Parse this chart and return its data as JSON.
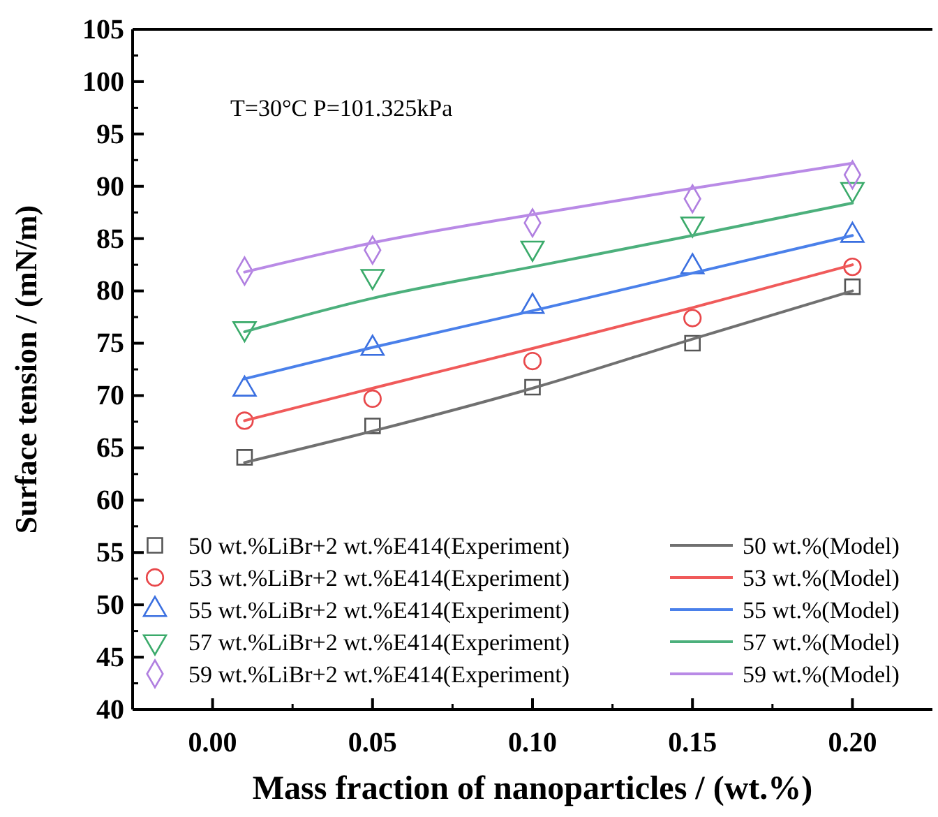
{
  "chart_data": {
    "type": "scatter",
    "xlabel": "Mass fraction of nanoparticles / (wt.%)",
    "ylabel": "Surface tension / (mN/m)",
    "annotations": [
      "T=30°C P=101.325kPa"
    ],
    "xlim": [
      -0.025,
      0.225
    ],
    "xticks": [
      {
        "value": 0,
        "label": "0.00"
      },
      {
        "value": 0.05,
        "label": "0.05"
      },
      {
        "value": 0.1,
        "label": "0.10"
      },
      {
        "value": 0.15,
        "label": "0.15"
      },
      {
        "value": 0.2,
        "label": "0.20"
      }
    ],
    "ylim": [
      40,
      105
    ],
    "yticks": [
      40,
      45,
      50,
      55,
      60,
      65,
      70,
      75,
      80,
      85,
      90,
      95,
      100,
      105
    ],
    "grid": false,
    "legend": "bottom",
    "x": [
      0.01,
      0.05,
      0.1,
      0.15,
      0.2
    ],
    "series": [
      {
        "name": "50 wt.%LiBr+2 wt.%E414(Experiment)",
        "type": "scatter",
        "marker": "square",
        "color": "#555555",
        "values": [
          64.1,
          67.1,
          70.8,
          75.0,
          80.4
        ]
      },
      {
        "name": "53 wt.%LiBr+2 wt.%E414(Experiment)",
        "type": "scatter",
        "marker": "circle",
        "color": "#e8474a",
        "values": [
          67.6,
          69.7,
          73.3,
          77.4,
          82.3
        ]
      },
      {
        "name": "55 wt.%LiBr+2 wt.%E414(Experiment)",
        "type": "scatter",
        "marker": "triangle",
        "color": "#3a6fe0",
        "values": [
          70.6,
          74.5,
          78.5,
          82.3,
          85.3
        ]
      },
      {
        "name": "57 wt.%LiBr+2 wt.%E414(Experiment)",
        "type": "scatter",
        "marker": "triangle-down",
        "color": "#3aaa6a",
        "values": [
          76.4,
          81.4,
          84.1,
          86.4,
          89.7
        ]
      },
      {
        "name": "59 wt.%LiBr+2 wt.%E414(Experiment)",
        "type": "scatter",
        "marker": "diamond",
        "color": "#b07fe0",
        "values": [
          81.9,
          83.9,
          86.5,
          88.8,
          91.1
        ]
      },
      {
        "name": "50 wt.%(Model)",
        "type": "line",
        "marker": "none",
        "line_style": "solid",
        "color": "#707070",
        "values": [
          63.6,
          66.6,
          70.7,
          75.4,
          80.0
        ]
      },
      {
        "name": "53 wt.%(Model)",
        "type": "line",
        "marker": "none",
        "line_style": "solid",
        "color": "#f05a5a",
        "values": [
          67.6,
          70.7,
          74.5,
          78.4,
          82.5
        ]
      },
      {
        "name": "55 wt.%(Model)",
        "type": "line",
        "marker": "none",
        "line_style": "solid",
        "color": "#4a80ea",
        "values": [
          71.6,
          74.6,
          78.1,
          81.7,
          85.3
        ]
      },
      {
        "name": "57 wt.%(Model)",
        "type": "line",
        "marker": "none",
        "line_style": "solid",
        "color": "#4cb07c",
        "values": [
          76.1,
          79.3,
          82.3,
          85.3,
          88.4
        ]
      },
      {
        "name": "59 wt.%(Model)",
        "type": "line",
        "marker": "none",
        "line_style": "solid",
        "color": "#b98ae6",
        "values": [
          81.8,
          84.6,
          87.3,
          89.8,
          92.2
        ]
      }
    ]
  }
}
